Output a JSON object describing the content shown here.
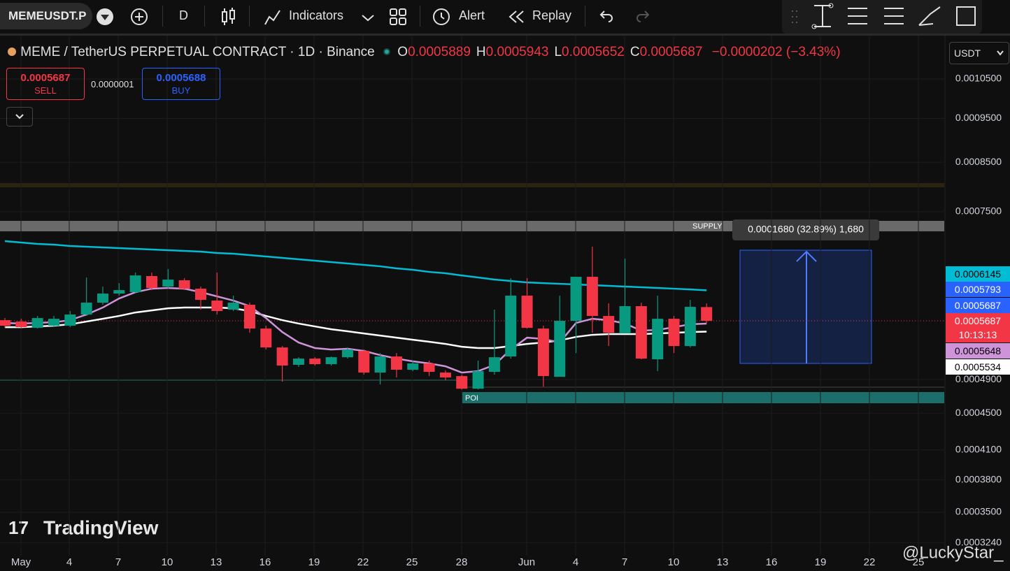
{
  "toolbar": {
    "symbol": "MEMEUSDT.P",
    "interval": "D",
    "indicators": "Indicators",
    "alert": "Alert",
    "replay": "Replay"
  },
  "header": {
    "title": "MEME / TetherUS PERPETUAL CONTRACT · 1D · Binance",
    "ohlc": [
      {
        "key": "O",
        "value": "0.0005889"
      },
      {
        "key": "H",
        "value": "0.0005943"
      },
      {
        "key": "L",
        "value": "0.0005652"
      },
      {
        "key": "C",
        "value": "0.0005687"
      }
    ],
    "change": "−0.0000202 (−3.43%)"
  },
  "trade": {
    "sell_price": "0.0005687",
    "sell": "SELL",
    "spread": "0.0000001",
    "buy_price": "0.0005688",
    "buy": "BUY"
  },
  "currency": "USDT",
  "annotations": {
    "supply": "SUPPLY",
    "poi": "POI",
    "measure": "0.0001680 (32.89%) 1,680"
  },
  "price_tags": [
    {
      "label": "0.0006145",
      "color": "#00bcd4",
      "text_color": "#000000"
    },
    {
      "label": "0.0005793",
      "color": "#2962ff",
      "text_color": "#ffffff"
    },
    {
      "label": "0.0005687",
      "color": "#2962ff",
      "text_color": "#ffffff"
    },
    {
      "label": "0.0005687",
      "color": "#f23645",
      "text_color": "#ffffff"
    },
    {
      "label": "10:13:13",
      "color": "#f23645",
      "text_color": "#ffffff"
    },
    {
      "label": "0.0005648",
      "color": "#ce93d8",
      "text_color": "#000000"
    },
    {
      "label": "0.0005534",
      "color": "#ffffff",
      "text_color": "#000000"
    }
  ],
  "logo": "TradingView",
  "watermark": "@LuckyStar_",
  "chart_data": {
    "type": "candlestick",
    "log_scale": true,
    "up_color": "#089981",
    "down_color": "#f23645",
    "xlabels": [
      "May",
      "4",
      "7",
      "10",
      "13",
      "16",
      "19",
      "22",
      "25",
      "28",
      "Jun",
      "4",
      "7",
      "10",
      "13",
      "16",
      "19",
      "22",
      "25"
    ],
    "ylim": [
      0.0003136,
      0.001174
    ],
    "yticks": [
      {
        "value": 0.00105,
        "label": "0.0010500"
      },
      {
        "value": 0.00095,
        "label": "0.0009500"
      },
      {
        "value": 0.00085,
        "label": "0.0008500"
      },
      {
        "value": 0.00075,
        "label": "0.0007500"
      },
      {
        "value": 0.00049,
        "label": "0.0004900"
      },
      {
        "value": 0.00045,
        "label": "0.0004500"
      },
      {
        "value": 0.00041,
        "label": "0.0004100"
      },
      {
        "value": 0.00038,
        "label": "0.0003800"
      },
      {
        "value": 0.00035,
        "label": "0.0003500"
      },
      {
        "value": 0.000324,
        "label": "0.0003240"
      }
    ],
    "candles": [
      {
        "o": 0.0005697,
        "h": 0.0005727,
        "l": 0.0005587,
        "c": 0.0005617
      },
      {
        "o": 0.0005677,
        "h": 0.0005717,
        "l": 0.0005577,
        "c": 0.0005597
      },
      {
        "o": 0.0005587,
        "h": 0.0005758,
        "l": 0.0005577,
        "c": 0.0005727
      },
      {
        "o": 0.0005617,
        "h": 0.0005758,
        "l": 0.0005597,
        "c": 0.0005717
      },
      {
        "o": 0.0005617,
        "h": 0.000583,
        "l": 0.0005597,
        "c": 0.0005779
      },
      {
        "o": 0.0005779,
        "h": 0.0006348,
        "l": 0.0005758,
        "c": 0.0005955
      },
      {
        "o": 0.0005955,
        "h": 0.0006203,
        "l": 0.0005924,
        "c": 0.0006094
      },
      {
        "o": 0.0006094,
        "h": 0.0006258,
        "l": 0.0006062,
        "c": 0.0006148
      },
      {
        "o": 0.0006116,
        "h": 0.0006427,
        "l": 0.0006094,
        "c": 0.0006381
      },
      {
        "o": 0.0006371,
        "h": 0.0006427,
        "l": 0.0006148,
        "c": 0.0006181
      },
      {
        "o": 0.0006203,
        "h": 0.0006484,
        "l": 0.000617,
        "c": 0.0006314
      },
      {
        "o": 0.0006303,
        "h": 0.0006337,
        "l": 0.0006148,
        "c": 0.000617
      },
      {
        "o": 0.000617,
        "h": 0.0006203,
        "l": 0.0005851,
        "c": 0.0005997
      },
      {
        "o": 0.0005987,
        "h": 0.0006427,
        "l": 0.0005779,
        "c": 0.000583
      },
      {
        "o": 0.0005851,
        "h": 0.0006062,
        "l": 0.000583,
        "c": 0.0005955
      },
      {
        "o": 0.0005924,
        "h": 0.0005955,
        "l": 0.0005518,
        "c": 0.0005577
      },
      {
        "o": 0.0005577,
        "h": 0.0005617,
        "l": 0.0005288,
        "c": 0.0005316
      },
      {
        "o": 0.0005316,
        "h": 0.0005335,
        "l": 0.0004874,
        "c": 0.0005078
      },
      {
        "o": 0.0005087,
        "h": 0.0005186,
        "l": 0.000506,
        "c": 0.0005168
      },
      {
        "o": 0.0005168,
        "h": 0.0005186,
        "l": 0.0005078,
        "c": 0.0005096
      },
      {
        "o": 0.0005096,
        "h": 0.0005196,
        "l": 0.0005078,
        "c": 0.0005186
      },
      {
        "o": 0.0005186,
        "h": 0.0005316,
        "l": 0.0005168,
        "c": 0.0005288
      },
      {
        "o": 0.0005269,
        "h": 0.0005288,
        "l": 0.0004962,
        "c": 0.0004988
      },
      {
        "o": 0.0004988,
        "h": 0.0005241,
        "l": 0.000484,
        "c": 0.0005196
      },
      {
        "o": 0.0005196,
        "h": 0.0005241,
        "l": 0.0004926,
        "c": 0.0005024
      },
      {
        "o": 0.0005024,
        "h": 0.0005141,
        "l": 0.0005006,
        "c": 0.0005105
      },
      {
        "o": 0.0005105,
        "h": 0.0005141,
        "l": 0.0004944,
        "c": 0.0004997
      },
      {
        "o": 0.0004988,
        "h": 0.0005015,
        "l": 0.0004892,
        "c": 0.0004926
      },
      {
        "o": 0.0004944,
        "h": 0.0004962,
        "l": 0.0004779,
        "c": 0.0004788
      },
      {
        "o": 0.0004788,
        "h": 0.0005141,
        "l": 0.0004779,
        "c": 0.0005006
      },
      {
        "o": 0.0004997,
        "h": 0.0005851,
        "l": 0.0004962,
        "c": 0.0005186
      },
      {
        "o": 0.0005196,
        "h": 0.0006337,
        "l": 0.0005168,
        "c": 0.0006062
      },
      {
        "o": 0.0006062,
        "h": 0.0006337,
        "l": 0.0005577,
        "c": 0.0005587
      },
      {
        "o": 0.0005577,
        "h": 0.0005617,
        "l": 0.0004813,
        "c": 0.0004944
      },
      {
        "o": 0.0004935,
        "h": 0.0006062,
        "l": 0.0004935,
        "c": 0.0005687
      },
      {
        "o": 0.0005687,
        "h": 0.0006359,
        "l": 0.0005241,
        "c": 0.0006359
      },
      {
        "o": 0.0006359,
        "h": 0.0006863,
        "l": 0.0005518,
        "c": 0.0005758
      },
      {
        "o": 0.0005758,
        "h": 0.0005945,
        "l": 0.0005335,
        "c": 0.0005518
      },
      {
        "o": 0.0005508,
        "h": 0.0006659,
        "l": 0.0005508,
        "c": 0.0005903
      },
      {
        "o": 0.0005903,
        "h": 0.0005955,
        "l": 0.0005159,
        "c": 0.0005168
      },
      {
        "o": 0.0005159,
        "h": 0.0006062,
        "l": 0.0005006,
        "c": 0.0005717
      },
      {
        "o": 0.0005717,
        "h": 0.0005758,
        "l": 0.0005241,
        "c": 0.0005335
      },
      {
        "o": 0.0005335,
        "h": 0.0005997,
        "l": 0.0005316,
        "c": 0.0005892
      },
      {
        "o": 0.0005889,
        "h": 0.0005943,
        "l": 0.0005652,
        "c": 0.0005687
      }
    ],
    "series": [
      {
        "color": "#00bcd4",
        "values": [
          0.0006961,
          0.0006936,
          0.0006912,
          0.0006899,
          0.0006875,
          0.0006863,
          0.0006851,
          0.0006839,
          0.0006826,
          0.0006815,
          0.0006802,
          0.000679,
          0.0006778,
          0.0006754,
          0.0006742,
          0.0006718,
          0.0006695,
          0.0006671,
          0.0006647,
          0.0006624,
          0.00066,
          0.0006577,
          0.0006554,
          0.000653,
          0.0006496,
          0.0006473,
          0.0006438,
          0.0006416,
          0.0006381,
          0.0006348,
          0.0006314,
          0.0006292,
          0.0006269,
          0.0006258,
          0.0006247,
          0.0006236,
          0.0006225,
          0.0006214,
          0.0006203,
          0.0006192,
          0.0006181,
          0.000617,
          0.0006159,
          0.0006145
        ]
      },
      {
        "color": "#ffffff",
        "values": [
          0.0005597,
          0.0005597,
          0.0005607,
          0.0005617,
          0.0005637,
          0.0005677,
          0.0005717,
          0.0005758,
          0.0005809,
          0.000584,
          0.0005871,
          0.0005882,
          0.0005882,
          0.0005882,
          0.0005871,
          0.000583,
          0.0005758,
          0.0005697,
          0.0005648,
          0.0005607,
          0.0005567,
          0.0005538,
          0.0005508,
          0.0005479,
          0.000545,
          0.0005421,
          0.0005393,
          0.0005364,
          0.0005326,
          0.0005308,
          0.0005308,
          0.0005335,
          0.0005364,
          0.0005383,
          0.0005412,
          0.000546,
          0.0005489,
          0.0005499,
          0.0005499,
          0.0005499,
          0.0005508,
          0.0005518,
          0.0005528,
          0.0005534
        ]
      },
      {
        "color": "#ce93d8",
        "values": [
          0.0005657,
          0.0005648,
          0.0005657,
          0.0005667,
          0.0005697,
          0.0005779,
          0.0005882,
          0.0006019,
          0.0006116,
          0.000617,
          0.0006181,
          0.000617,
          0.0006116,
          0.0006051,
          0.0005987,
          0.0005903,
          0.0005727,
          0.0005528,
          0.0005383,
          0.0005308,
          0.0005288,
          0.0005298,
          0.0005269,
          0.0005214,
          0.0005168,
          0.0005132,
          0.0005105,
          0.0005068,
          0.0004988,
          0.0005006,
          0.0005087,
          0.0005288,
          0.000545,
          0.0005431,
          0.0005383,
          0.0005657,
          0.0005717,
          0.0005697,
          0.0005648,
          0.0005548,
          0.0005557,
          0.0005597,
          0.0005637,
          0.0005648
        ]
      }
    ]
  }
}
